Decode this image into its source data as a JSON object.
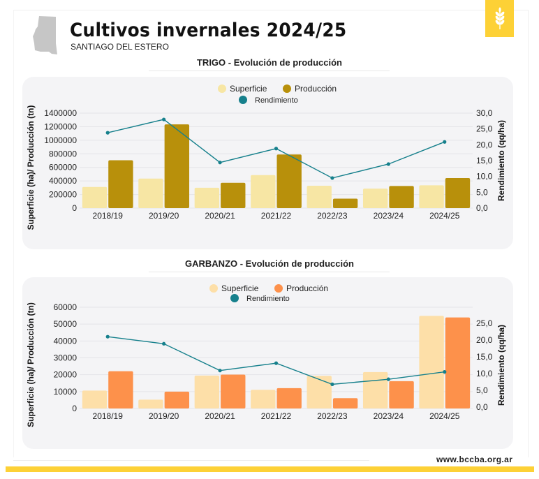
{
  "header": {
    "title": "Cultivos invernales 2024/25",
    "subtitle": "SANTIAGO DEL ESTERO",
    "map_icon": "santiago-del-estero-map-icon",
    "badge_icon": "wheat-icon",
    "badge_color": "#fdd136"
  },
  "footer": {
    "url": "www.bccba.org.ar",
    "bar_color": "#fdd136"
  },
  "chart_data": [
    {
      "type": "bar",
      "title": "TRIGO - Evolución de producción",
      "categories": [
        "2018/19",
        "2019/20",
        "2020/21",
        "2021/22",
        "2022/23",
        "2023/24",
        "2024/25"
      ],
      "series": [
        {
          "name": "Superficie",
          "kind": "bar",
          "axis": "left",
          "color": "#f7e6a4",
          "values": [
            311000,
            435000,
            300000,
            487000,
            330000,
            287000,
            336000
          ]
        },
        {
          "name": "Producción",
          "kind": "bar",
          "axis": "left",
          "color": "#b8900b",
          "values": [
            705000,
            1234000,
            373000,
            790000,
            139000,
            326000,
            443000
          ]
        },
        {
          "name": "Rendimiento",
          "kind": "line",
          "axis": "right",
          "color": "#16808c",
          "values": [
            23.8,
            28.0,
            14.4,
            18.8,
            9.5,
            13.9,
            20.9
          ]
        }
      ],
      "ylabel": "Superficie (ha)/ Producción (tn)",
      "ylabel_right": "Rendimiento (qq/ha)",
      "ylim": [
        0,
        1400000
      ],
      "yticks": [
        "0",
        "200000",
        "400000",
        "600000",
        "800000",
        "1000000",
        "1200000",
        "1400000"
      ],
      "ylim_right": [
        0,
        30
      ],
      "yticks_right": [
        "0,0",
        "5,0",
        "10,0",
        "15,0",
        "20,0",
        "25,0",
        "30,0"
      ],
      "legend": {
        "placement": "top-center",
        "items": [
          "Superficie",
          "Producción",
          "Rendimiento"
        ]
      },
      "grid": true
    },
    {
      "type": "bar",
      "title": "GARBANZO - Evolución de producción",
      "categories": [
        "2018/19",
        "2019/20",
        "2020/21",
        "2021/22",
        "2022/23",
        "2023/24",
        "2024/25"
      ],
      "series": [
        {
          "name": "Superficie",
          "kind": "bar",
          "axis": "left",
          "color": "#fddfa8",
          "values": [
            10600,
            5250,
            19500,
            11060,
            19360,
            21580,
            54900
          ]
        },
        {
          "name": "Producción",
          "kind": "bar",
          "axis": "left",
          "color": "#fd914b",
          "values": [
            22100,
            9960,
            20050,
            12030,
            6090,
            16180,
            53940
          ]
        },
        {
          "name": "Rendimiento",
          "kind": "line",
          "axis": "right",
          "color": "#16808c",
          "values": [
            21.0,
            18.9,
            10.9,
            13.1,
            6.8,
            8.3,
            10.5
          ]
        }
      ],
      "ylabel": "Superficie (ha)/ Producción (tn)",
      "ylabel_right": "Rendimiento (qq/ha)",
      "ylim": [
        0,
        60000
      ],
      "yticks": [
        "0",
        "10000",
        "20000",
        "30000",
        "40000",
        "50000",
        "60000"
      ],
      "ylim_right": [
        0,
        25
      ],
      "yticks_right": [
        "0,0",
        "5,0",
        "10,0",
        "15,0",
        "20,0",
        "25,0"
      ],
      "legend": {
        "placement": "top-center",
        "items": [
          "Superficie",
          "Producción",
          "Rendimiento"
        ]
      },
      "grid": true
    }
  ]
}
